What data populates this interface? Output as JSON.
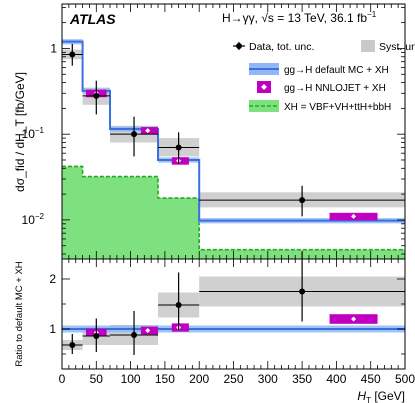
{
  "chart_data": [
    {
      "type": "step",
      "panel": "main",
      "ylabel": "dσ_fid / dH_T  [fb/GeV]",
      "yscale": "log",
      "ylim": [
        0.0035,
        3.3
      ],
      "xlim": [
        0,
        500
      ],
      "y_ticks": [
        {
          "value": 1,
          "label": "1"
        },
        {
          "value": 0.1,
          "label": "10",
          "exp": "−1"
        },
        {
          "value": 0.01,
          "label": "10",
          "exp": "−2"
        }
      ],
      "experiment": "ATLAS",
      "process_text": "H→γγ, √s = 13 TeV, 36.1 fb",
      "process_text_exp": "−1",
      "bin_edges": [
        0,
        30,
        70,
        140,
        200,
        500
      ],
      "data": {
        "name": "Data, tot. unc.",
        "x": [
          15,
          50,
          105,
          170,
          350
        ],
        "y": [
          0.85,
          0.28,
          0.1,
          0.07,
          0.017
        ],
        "err_up": [
          0.28,
          0.14,
          0.06,
          0.035,
          0.008
        ],
        "err_down": [
          0.22,
          0.11,
          0.045,
          0.025,
          0.006
        ],
        "syst_up": [
          0.12,
          0.07,
          0.025,
          0.02,
          0.004
        ],
        "syst_down": [
          0.1,
          0.06,
          0.02,
          0.015,
          0.003
        ]
      },
      "syst_legend": "Syst. unc.",
      "mc_default": {
        "name": "gg→H default MC + XH",
        "values": [
          1.2,
          0.32,
          0.115,
          0.05,
          0.0098
        ],
        "unc_frac": 0.07,
        "color": "#3b6fe0",
        "band_color": "#8fb8f5"
      },
      "nnlojet": {
        "name": "gg→H NNLOJET + XH",
        "x": [
          50,
          125,
          170,
          425
        ],
        "x_lo": [
          35,
          115,
          160,
          390
        ],
        "x_hi": [
          65,
          140,
          185,
          460
        ],
        "y": [
          0.3,
          0.11,
          0.049,
          0.011
        ],
        "unc_frac": 0.1,
        "color": "#c000c0"
      },
      "xh": {
        "name": "XH = VBF+VH+ttH+bbH",
        "values": [
          0.042,
          0.032,
          0.032,
          0.018,
          0.0045
        ],
        "fill_color": "#7ee07e",
        "line_color": "#22aa22"
      }
    },
    {
      "type": "step",
      "panel": "ratio",
      "ylabel": "Ratio to default MC + XH",
      "ylim": [
        0.2,
        2.4
      ],
      "xlim": [
        0,
        500
      ],
      "xlabel": "H_T  [GeV]",
      "xlabel_unit": "[GeV]",
      "x_ticks": [
        0,
        50,
        100,
        150,
        200,
        250,
        300,
        350,
        400,
        450,
        500
      ],
      "y_ticks": [
        1,
        2
      ],
      "data": {
        "x": [
          15,
          50,
          105,
          170,
          350
        ],
        "y": [
          0.68,
          0.86,
          0.88,
          1.48,
          1.75
        ],
        "err_up": [
          0.22,
          0.35,
          0.48,
          0.65,
          0.8
        ],
        "err_down": [
          0.18,
          0.32,
          0.4,
          0.5,
          0.6
        ],
        "syst_up": [
          0.1,
          0.18,
          0.2,
          0.25,
          0.3
        ],
        "syst_down": [
          0.1,
          0.18,
          0.2,
          0.25,
          0.3
        ]
      },
      "mc_band_frac": 0.07,
      "nnlojet": {
        "x": [
          50,
          125,
          170,
          425
        ],
        "x_lo": [
          35,
          115,
          160,
          390
        ],
        "x_hi": [
          65,
          140,
          185,
          460
        ],
        "y": [
          0.93,
          0.97,
          1.03,
          1.2
        ],
        "unc_frac": 0.08
      }
    }
  ]
}
